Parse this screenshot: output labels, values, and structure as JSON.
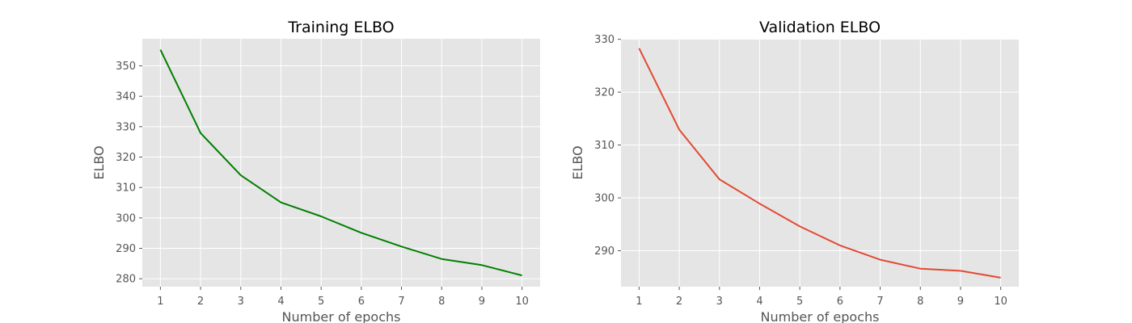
{
  "chart_data": [
    {
      "type": "line",
      "title": "Training ELBO",
      "xlabel": "Number of epochs",
      "ylabel": "ELBO",
      "x": [
        1,
        2,
        3,
        4,
        5,
        6,
        7,
        8,
        9,
        10
      ],
      "series": [
        {
          "values": [
            355.3,
            327.9,
            314.0,
            305.1,
            300.5,
            295.1,
            290.6,
            286.5,
            284.5,
            281.1
          ],
          "color": "#008000"
        }
      ],
      "xticks": [
        1,
        2,
        3,
        4,
        5,
        6,
        7,
        8,
        9,
        10
      ],
      "yticks": [
        280,
        290,
        300,
        310,
        320,
        330,
        340,
        350
      ],
      "xlim": [
        0.55,
        10.45
      ],
      "ylim": [
        277.4,
        358.9
      ],
      "grid": true
    },
    {
      "type": "line",
      "title": "Validation ELBO",
      "xlabel": "Number of epochs",
      "ylabel": "ELBO",
      "x": [
        1,
        2,
        3,
        4,
        5,
        6,
        7,
        8,
        9,
        10
      ],
      "series": [
        {
          "values": [
            328.3,
            312.9,
            303.5,
            298.9,
            294.6,
            291.0,
            288.3,
            286.6,
            286.2,
            284.9
          ],
          "color": "#e24a33"
        }
      ],
      "xticks": [
        1,
        2,
        3,
        4,
        5,
        6,
        7,
        8,
        9,
        10
      ],
      "yticks": [
        290,
        300,
        310,
        320,
        330
      ],
      "xlim": [
        0.55,
        10.45
      ],
      "ylim": [
        283.2,
        330.1
      ],
      "grid": true
    }
  ]
}
